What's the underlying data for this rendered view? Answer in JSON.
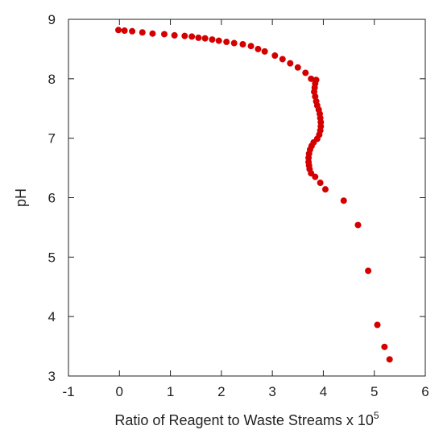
{
  "chart_data": {
    "type": "scatter",
    "title": "",
    "xlabel": "Ratio of Reagent to Waste Streams x 10",
    "xlabel_superscript": "5",
    "ylabel": "pH",
    "xlim": [
      -1,
      6
    ],
    "ylim": [
      3,
      9
    ],
    "xticks": [
      "-1",
      "0",
      "1",
      "2",
      "3",
      "4",
      "5",
      "6"
    ],
    "yticks": [
      "3",
      "4",
      "5",
      "6",
      "7",
      "8",
      "9"
    ],
    "grid": false,
    "legend": "none",
    "marker_color": "#d40000",
    "series": [
      {
        "points": [
          [
            -0.02,
            8.82
          ],
          [
            0.1,
            8.81
          ],
          [
            0.25,
            8.8
          ],
          [
            0.45,
            8.78
          ],
          [
            0.65,
            8.76
          ],
          [
            0.88,
            8.75
          ],
          [
            1.08,
            8.73
          ],
          [
            1.28,
            8.72
          ],
          [
            1.42,
            8.71
          ],
          [
            1.55,
            8.69
          ],
          [
            1.68,
            8.68
          ],
          [
            1.82,
            8.66
          ],
          [
            1.95,
            8.64
          ],
          [
            2.1,
            8.62
          ],
          [
            2.25,
            8.6
          ],
          [
            2.42,
            8.58
          ],
          [
            2.58,
            8.55
          ],
          [
            2.72,
            8.5
          ],
          [
            2.85,
            8.46
          ],
          [
            3.05,
            8.39
          ],
          [
            3.2,
            8.33
          ],
          [
            3.35,
            8.26
          ],
          [
            3.5,
            8.19
          ],
          [
            3.65,
            8.1
          ],
          [
            3.76,
            8.0
          ],
          [
            3.86,
            7.98
          ],
          [
            3.84,
            7.92
          ],
          [
            3.83,
            7.85
          ],
          [
            3.82,
            7.78
          ],
          [
            3.84,
            7.7
          ],
          [
            3.86,
            7.62
          ],
          [
            3.88,
            7.55
          ],
          [
            3.91,
            7.48
          ],
          [
            3.93,
            7.41
          ],
          [
            3.94,
            7.34
          ],
          [
            3.95,
            7.27
          ],
          [
            3.95,
            7.2
          ],
          [
            3.94,
            7.13
          ],
          [
            3.92,
            7.06
          ],
          [
            3.88,
            6.99
          ],
          [
            3.81,
            6.93
          ],
          [
            3.77,
            6.87
          ],
          [
            3.74,
            6.81
          ],
          [
            3.72,
            6.74
          ],
          [
            3.71,
            6.67
          ],
          [
            3.71,
            6.6
          ],
          [
            3.72,
            6.54
          ],
          [
            3.73,
            6.48
          ],
          [
            3.76,
            6.41
          ],
          [
            3.84,
            6.35
          ],
          [
            3.94,
            6.25
          ],
          [
            4.04,
            6.14
          ],
          [
            4.4,
            5.95
          ],
          [
            4.68,
            5.54
          ],
          [
            4.88,
            4.77
          ],
          [
            5.06,
            3.86
          ],
          [
            5.2,
            3.49
          ],
          [
            5.3,
            3.28
          ]
        ]
      }
    ]
  }
}
